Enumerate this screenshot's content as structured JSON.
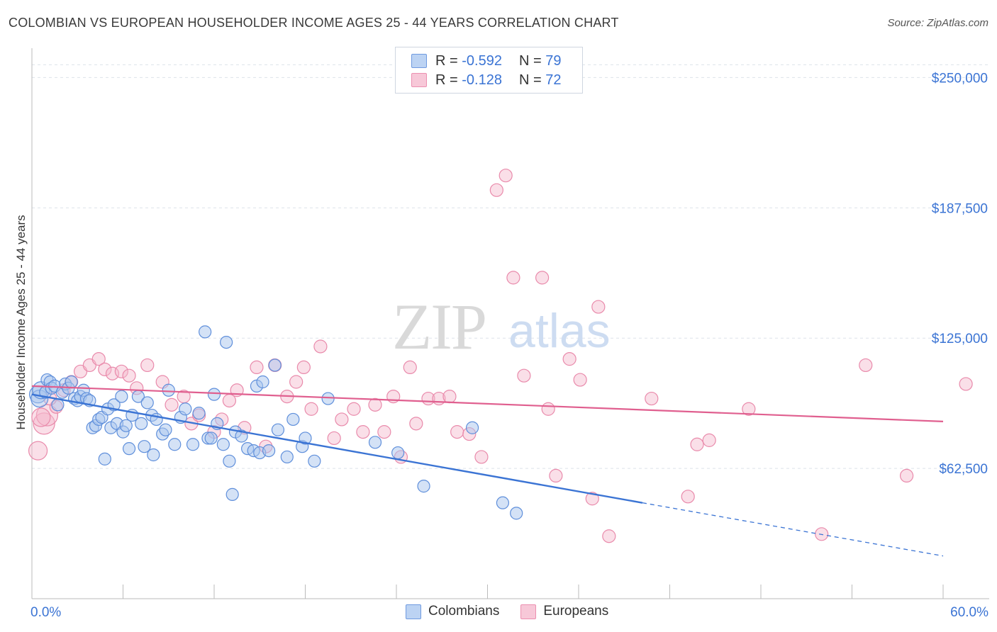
{
  "title": "COLOMBIAN VS EUROPEAN HOUSEHOLDER INCOME AGES 25 - 44 YEARS CORRELATION CHART",
  "source": "Source: ZipAtlas.com",
  "watermark": {
    "zip": "ZIP",
    "atlas": "atlas"
  },
  "legend": {
    "colombians": {
      "r_label": "R = ",
      "r_value": "-0.592",
      "n_label": "N = ",
      "n_value": "79"
    },
    "europeans": {
      "r_label": "R = ",
      "r_value": "-0.128",
      "n_label": "N = ",
      "n_value": "72"
    }
  },
  "bottom_legend": {
    "colombians": "Colombians",
    "europeans": "Europeans"
  },
  "colors": {
    "blue": "#3b74d4",
    "blue_fill": "#a9c5ee",
    "pink": "#e05f8f",
    "pink_fill": "#f4b7cb",
    "grid": "#dde2ea",
    "axis_text": "#3b74d4"
  },
  "chart_data": {
    "type": "scatter",
    "title": "COLOMBIAN VS EUROPEAN HOUSEHOLDER INCOME AGES 25 - 44 YEARS CORRELATION CHART",
    "xlabel": "",
    "ylabel": "Householder Income Ages 25 - 44 years",
    "xlim": [
      0,
      60
    ],
    "ylim": [
      0,
      260000
    ],
    "x_tick_labels": [
      "0.0%",
      "60.0%"
    ],
    "y_ticks": [
      62500,
      125000,
      187500,
      250000
    ],
    "y_tick_labels": [
      "$62,500",
      "$125,000",
      "$187,500",
      "$250,000"
    ],
    "grid": true,
    "legend_position": "top-center",
    "series": [
      {
        "name": "Colombians",
        "r": -0.592,
        "n": 79,
        "trend": {
          "x0": 0,
          "y0": 98000,
          "x1": 40.2,
          "y1": 46000,
          "dash_x1": 60,
          "dash_y1": 20500
        },
        "points": [
          [
            0.4,
            98000
          ],
          [
            0.5,
            96000
          ],
          [
            0.6,
            100000
          ],
          [
            0.9,
            99000
          ],
          [
            1.0,
            105000
          ],
          [
            1.2,
            104000
          ],
          [
            1.3,
            101000
          ],
          [
            1.5,
            102000
          ],
          [
            1.7,
            93000
          ],
          [
            2.0,
            99000
          ],
          [
            2.2,
            103000
          ],
          [
            2.4,
            101000
          ],
          [
            2.6,
            104000
          ],
          [
            2.8,
            96000
          ],
          [
            3.0,
            95000
          ],
          [
            3.2,
            97000
          ],
          [
            3.4,
            100000
          ],
          [
            3.6,
            96000
          ],
          [
            3.8,
            95000
          ],
          [
            4.0,
            82000
          ],
          [
            4.2,
            83000
          ],
          [
            4.4,
            86000
          ],
          [
            4.6,
            87000
          ],
          [
            4.8,
            67000
          ],
          [
            5.0,
            91000
          ],
          [
            5.2,
            82000
          ],
          [
            5.4,
            93000
          ],
          [
            5.6,
            84000
          ],
          [
            5.9,
            97000
          ],
          [
            6.0,
            80000
          ],
          [
            6.2,
            83000
          ],
          [
            6.4,
            72000
          ],
          [
            6.6,
            88000
          ],
          [
            7.0,
            97000
          ],
          [
            7.2,
            84000
          ],
          [
            7.4,
            73000
          ],
          [
            7.6,
            94000
          ],
          [
            7.9,
            88000
          ],
          [
            8.0,
            69000
          ],
          [
            8.2,
            86000
          ],
          [
            8.6,
            79000
          ],
          [
            8.8,
            81000
          ],
          [
            9.0,
            100000
          ],
          [
            9.4,
            74000
          ],
          [
            9.8,
            87000
          ],
          [
            10.1,
            91000
          ],
          [
            10.6,
            74000
          ],
          [
            11.0,
            89000
          ],
          [
            11.4,
            128000
          ],
          [
            11.6,
            77000
          ],
          [
            11.8,
            77000
          ],
          [
            12.0,
            98000
          ],
          [
            12.2,
            84000
          ],
          [
            12.6,
            74000
          ],
          [
            12.8,
            123000
          ],
          [
            13.0,
            66000
          ],
          [
            13.4,
            80000
          ],
          [
            13.8,
            78000
          ],
          [
            14.2,
            72000
          ],
          [
            14.6,
            71000
          ],
          [
            14.8,
            102000
          ],
          [
            15.0,
            70000
          ],
          [
            15.2,
            104000
          ],
          [
            15.6,
            71000
          ],
          [
            16.0,
            112000
          ],
          [
            16.2,
            81000
          ],
          [
            16.8,
            68000
          ],
          [
            17.2,
            86000
          ],
          [
            17.8,
            73000
          ],
          [
            18.0,
            77000
          ],
          [
            18.6,
            66000
          ],
          [
            19.5,
            96000
          ],
          [
            22.6,
            75000
          ],
          [
            24.1,
            70000
          ],
          [
            25.8,
            54000
          ],
          [
            29.0,
            82000
          ],
          [
            31.0,
            46000
          ],
          [
            31.9,
            41000
          ],
          [
            13.2,
            50000
          ]
        ]
      },
      {
        "name": "Europeans",
        "r": -0.128,
        "n": 72,
        "trend": {
          "x0": 0,
          "y0": 102000,
          "x1": 60,
          "y1": 85000
        },
        "points": [
          [
            0.4,
            71000
          ],
          [
            0.8,
            84000
          ],
          [
            1.0,
            88000
          ],
          [
            1.6,
            92000
          ],
          [
            2.1,
            100000
          ],
          [
            2.6,
            104000
          ],
          [
            3.2,
            109000
          ],
          [
            3.8,
            112000
          ],
          [
            4.4,
            115000
          ],
          [
            4.8,
            110000
          ],
          [
            5.3,
            108000
          ],
          [
            5.9,
            109000
          ],
          [
            6.4,
            107000
          ],
          [
            6.9,
            101000
          ],
          [
            7.6,
            112000
          ],
          [
            8.6,
            104000
          ],
          [
            9.2,
            93000
          ],
          [
            10.0,
            97000
          ],
          [
            10.5,
            84000
          ],
          [
            11.0,
            88000
          ],
          [
            12.0,
            80000
          ],
          [
            12.5,
            86000
          ],
          [
            13.0,
            95000
          ],
          [
            13.5,
            100000
          ],
          [
            14.0,
            82000
          ],
          [
            14.8,
            111000
          ],
          [
            15.4,
            73000
          ],
          [
            16.0,
            112000
          ],
          [
            16.8,
            97000
          ],
          [
            17.4,
            104000
          ],
          [
            17.9,
            111000
          ],
          [
            18.4,
            91000
          ],
          [
            19.0,
            121000
          ],
          [
            19.9,
            77000
          ],
          [
            20.4,
            86000
          ],
          [
            21.2,
            91000
          ],
          [
            21.8,
            80000
          ],
          [
            22.6,
            93000
          ],
          [
            23.2,
            80000
          ],
          [
            23.8,
            97000
          ],
          [
            24.3,
            68000
          ],
          [
            24.9,
            111000
          ],
          [
            25.3,
            84000
          ],
          [
            26.1,
            96000
          ],
          [
            26.8,
            96000
          ],
          [
            27.5,
            97000
          ],
          [
            28.0,
            80000
          ],
          [
            28.8,
            79000
          ],
          [
            29.6,
            68000
          ],
          [
            30.6,
            196000
          ],
          [
            31.2,
            203000
          ],
          [
            31.7,
            154000
          ],
          [
            32.4,
            107000
          ],
          [
            33.6,
            154000
          ],
          [
            34.0,
            91000
          ],
          [
            34.5,
            59000
          ],
          [
            35.4,
            115000
          ],
          [
            36.1,
            105000
          ],
          [
            36.9,
            48000
          ],
          [
            37.3,
            140000
          ],
          [
            38.0,
            30000
          ],
          [
            40.8,
            96000
          ],
          [
            43.2,
            49000
          ],
          [
            43.8,
            74000
          ],
          [
            44.6,
            76000
          ],
          [
            47.2,
            91000
          ],
          [
            52.0,
            31000
          ],
          [
            54.9,
            112000
          ],
          [
            57.6,
            59000
          ],
          [
            62.4,
            103000
          ],
          [
            0.6,
            87000
          ],
          [
            1.2,
            96000
          ]
        ]
      }
    ]
  }
}
